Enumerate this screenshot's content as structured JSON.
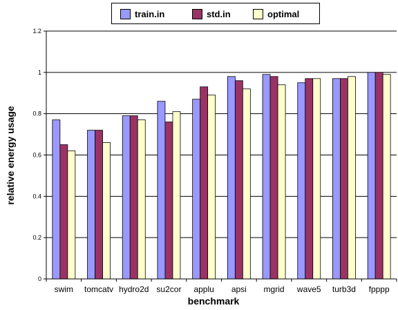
{
  "chart_data": {
    "type": "bar",
    "xlabel": "benchmark",
    "ylabel": "relative energy usage",
    "ylim": [
      0,
      1.2
    ],
    "yticks": [
      "0",
      "0.2",
      "0.4",
      "0.6",
      "0.8",
      "1",
      "1.2"
    ],
    "grid": "horizontal",
    "legend_position": "top",
    "categories": [
      "swim",
      "tomcatv",
      "hydro2d",
      "su2cor",
      "applu",
      "apsi",
      "mgrid",
      "wave5",
      "turb3d",
      "fpppp"
    ],
    "series": [
      {
        "name": "train.in",
        "color": "#9999ff",
        "values": [
          0.77,
          0.72,
          0.79,
          0.86,
          0.87,
          0.98,
          0.99,
          0.95,
          0.97,
          1.0
        ]
      },
      {
        "name": "std.in",
        "color": "#993366",
        "values": [
          0.65,
          0.72,
          0.79,
          0.76,
          0.93,
          0.96,
          0.98,
          0.97,
          0.97,
          1.0
        ]
      },
      {
        "name": "optimal",
        "color": "#ffffcc",
        "values": [
          0.62,
          0.66,
          0.77,
          0.81,
          0.89,
          0.92,
          0.94,
          0.97,
          0.98,
          0.99
        ]
      }
    ]
  }
}
